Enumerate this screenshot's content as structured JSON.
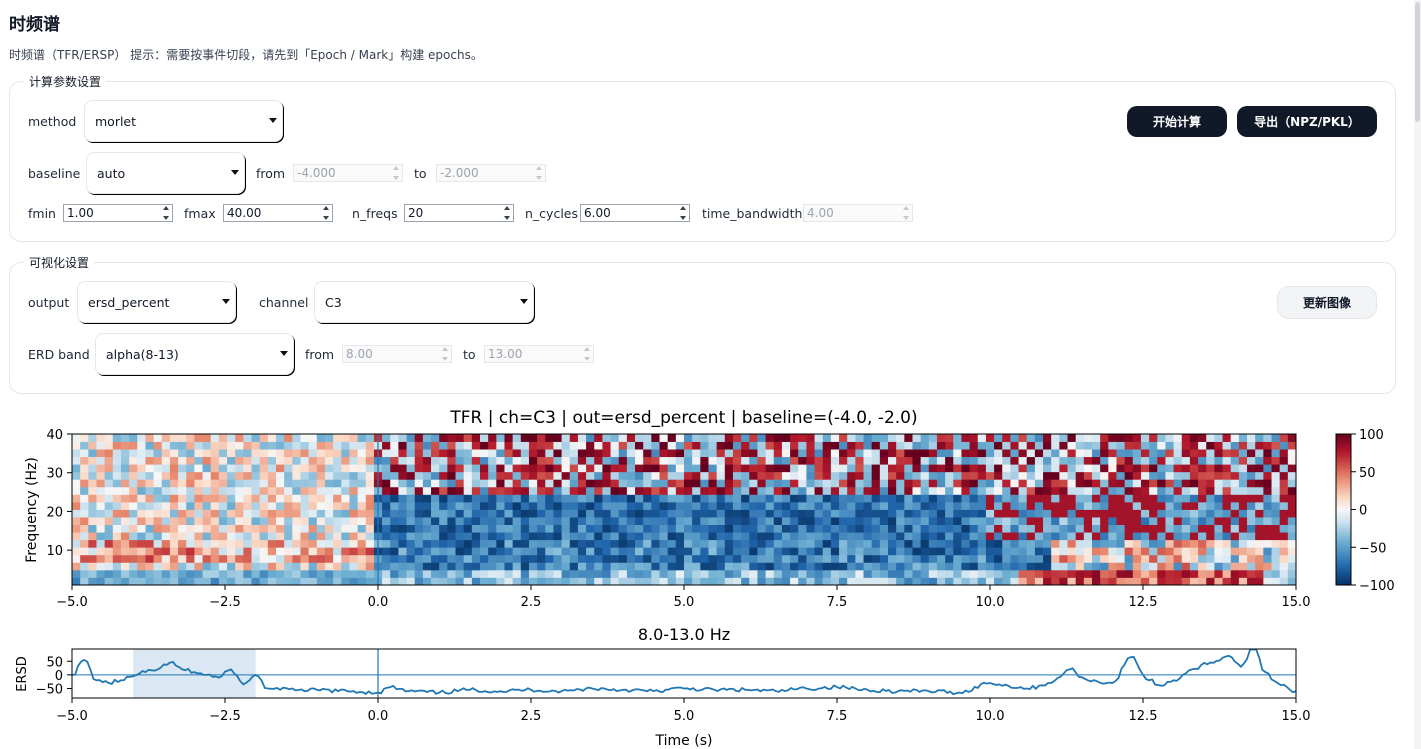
{
  "page": {
    "title": "时频谱",
    "hint": "时频谱（TFR/ERSP） 提示：需要按事件切段，请先到「Epoch / Mark」构建 epochs。"
  },
  "compute": {
    "legend": "计算参数设置",
    "method_label": "method",
    "method_value": "morlet",
    "baseline_label": "baseline",
    "baseline_value": "auto",
    "from_label": "from",
    "from_value": "-4.000",
    "to_label": "to",
    "to_value": "-2.000",
    "fmin_label": "fmin",
    "fmin_value": "1.00",
    "fmax_label": "fmax",
    "fmax_value": "40.00",
    "nfreqs_label": "n_freqs",
    "nfreqs_value": "20",
    "ncycles_label": "n_cycles",
    "ncycles_value": "6.00",
    "tbw_label": "time_bandwidth",
    "tbw_value": "4.00",
    "start_button": "开始计算",
    "export_button": "导出（NPZ/PKL）"
  },
  "viz": {
    "legend": "可视化设置",
    "output_label": "output",
    "output_value": "ersd_percent",
    "channel_label": "channel",
    "channel_value": "C3",
    "update_button": "更新图像",
    "band_label": "ERD band",
    "band_value": "alpha(8-13)",
    "band_from_label": "from",
    "band_from_value": "8.00",
    "band_to_label": "to",
    "band_to_value": "13.00"
  },
  "chart_data": [
    {
      "type": "heatmap",
      "title": "TFR | ch=C3 | out=ersd_percent | baseline=(-4.0, -2.0)",
      "xlabel": "",
      "ylabel": "Frequency (Hz)",
      "xlim": [
        -5.0,
        15.0
      ],
      "ylim": [
        1,
        40
      ],
      "xticks": [
        "−5.0",
        "−2.5",
        "0.0",
        "2.5",
        "5.0",
        "7.5",
        "10.0",
        "12.5",
        "15.0"
      ],
      "yticks": [
        "10",
        "20",
        "30",
        "40"
      ],
      "colorbar": {
        "range": [
          -100,
          100
        ],
        "ticks": [
          "100",
          "50",
          "0",
          "−50",
          "−100"
        ],
        "colormap": "RdBu_r"
      },
      "event_marker_x": 0.0,
      "n_freqs": 20,
      "bands_summary": [
        {
          "freq_range": "1-5 Hz",
          "early": "blue",
          "late": "strong red near 11-14 s"
        },
        {
          "freq_range": "8-13 Hz",
          "early": "mixed red/white",
          "late": "blue (ERD) 0-11 s, mixed after"
        },
        {
          "freq_range": "14-24 Hz",
          "early": "white/light",
          "late": "strong blue 0-10 s"
        },
        {
          "freq_range": "25-40 Hz",
          "early": "mixed",
          "late": "strong red bursts after 0 s"
        }
      ]
    },
    {
      "type": "line",
      "title": "8.0-13.0 Hz",
      "xlabel": "Time (s)",
      "ylabel": "ERSD",
      "xlim": [
        -5.0,
        15.0
      ],
      "ylim": [
        -85,
        95
      ],
      "xticks": [
        "−5.0",
        "−2.5",
        "0.0",
        "2.5",
        "5.0",
        "7.5",
        "10.0",
        "12.5",
        "15.0"
      ],
      "yticks": [
        "50",
        "0",
        "−50"
      ],
      "baseline_span": [
        -4.0,
        -2.0
      ],
      "event_marker_x": 0.0,
      "zero_line": 0,
      "x": [
        -5.0,
        -4.8,
        -4.6,
        -4.4,
        -4.2,
        -4.0,
        -3.8,
        -3.6,
        -3.4,
        -3.2,
        -3.0,
        -2.8,
        -2.6,
        -2.4,
        -2.2,
        -2.0,
        -1.8,
        -1.6,
        -1.4,
        -1.2,
        -1.0,
        -0.5,
        0.0,
        0.2,
        0.5,
        1.0,
        1.5,
        2.0,
        2.5,
        3.0,
        3.5,
        4.0,
        4.5,
        5.0,
        5.5,
        6.0,
        6.5,
        7.0,
        7.5,
        8.0,
        8.5,
        9.0,
        9.5,
        10.0,
        10.3,
        10.6,
        11.0,
        11.3,
        11.6,
        12.0,
        12.3,
        12.6,
        12.8,
        13.0,
        13.3,
        13.6,
        13.9,
        14.1,
        14.3,
        14.5,
        14.7,
        15.0
      ],
      "values": [
        0,
        55,
        -20,
        -30,
        -20,
        -5,
        10,
        20,
        45,
        20,
        10,
        0,
        -10,
        20,
        -35,
        0,
        -50,
        -55,
        -50,
        -60,
        -55,
        -60,
        -65,
        -45,
        -60,
        -65,
        -55,
        -60,
        -55,
        -60,
        -50,
        -55,
        -60,
        -50,
        -55,
        -55,
        -60,
        -50,
        -45,
        -55,
        -60,
        -60,
        -65,
        -30,
        -40,
        -50,
        -30,
        20,
        -20,
        -30,
        65,
        -20,
        -40,
        -20,
        20,
        45,
        70,
        30,
        100,
        10,
        -30,
        -60
      ]
    }
  ]
}
